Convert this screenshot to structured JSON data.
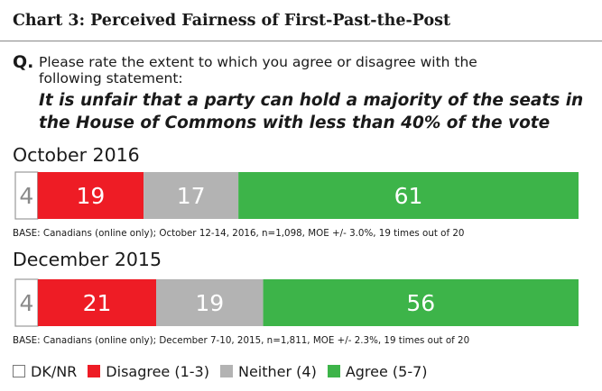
{
  "header": {
    "title": "Chart 3: Perceived Fairness of First-Past-the-Post",
    "q_label": "Q.",
    "question": "Please rate the extent to which you agree or disagree with the following statement:",
    "statement": "It is unfair that a party can hold a majority of the seats in the House of Commons with less than 40% of the vote"
  },
  "chart_data": {
    "type": "bar",
    "orientation": "horizontal",
    "stacked": true,
    "categories": [
      "October 2016",
      "December 2015"
    ],
    "series": [
      {
        "name": "DK/NR",
        "color": "#ffffff",
        "values": [
          4,
          4
        ]
      },
      {
        "name": "Disagree (1-3)",
        "color": "#ee1c25",
        "values": [
          19,
          21
        ]
      },
      {
        "name": "Neither (4)",
        "color": "#b3b3b3",
        "values": [
          17,
          19
        ]
      },
      {
        "name": "Agree (5-7)",
        "color": "#3db449",
        "values": [
          61,
          56
        ]
      }
    ],
    "legend_position": "bottom-left",
    "notes": [
      "BASE: Canadians (online only); October 12-14, 2016, n=1,098, MOE +/- 3.0%, 19 times out of 20",
      "BASE: Canadians (online only); December 7-10, 2015, n=1,811, MOE +/- 2.3%, 19 times out of 20"
    ]
  }
}
